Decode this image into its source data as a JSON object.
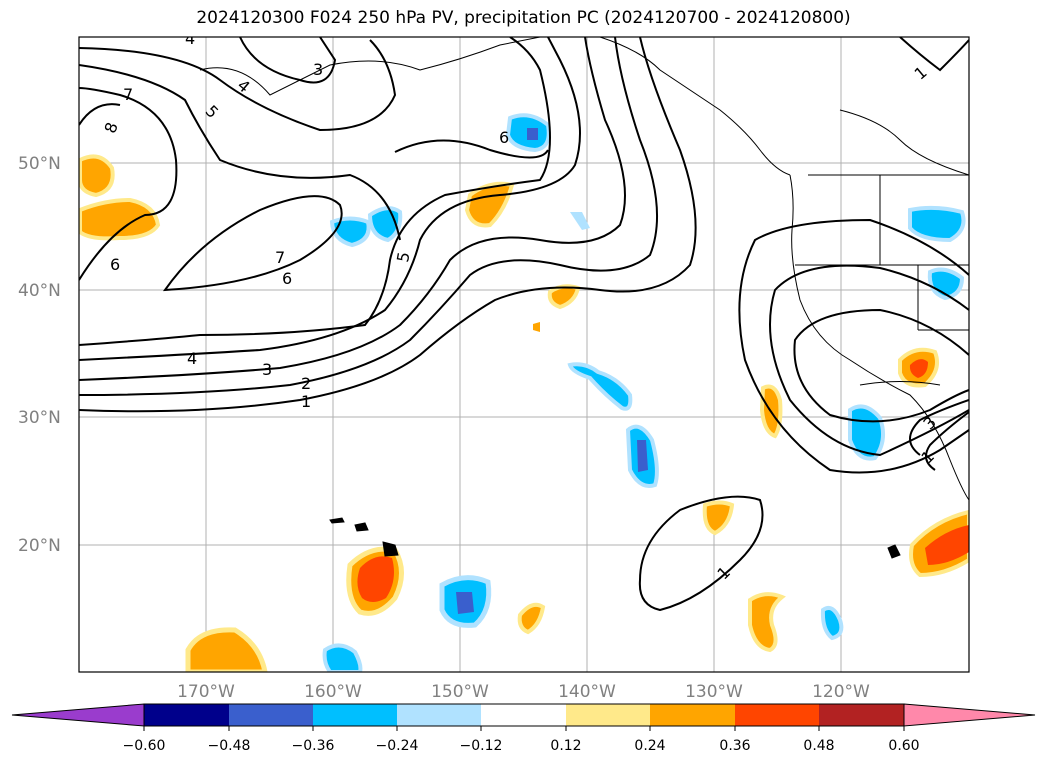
{
  "title": "2024120300 F024 250 hPa PV, precipitation PC (2024120700 - 2024120800)",
  "map": {
    "lat_labels": [
      "50°N",
      "40°N",
      "30°N",
      "20°N"
    ],
    "lon_labels": [
      "170°W",
      "160°W",
      "150°W",
      "140°W",
      "130°W",
      "120°W"
    ],
    "pv_contour_labels": [
      "4",
      "3",
      "4",
      "5",
      "7",
      "8",
      "6",
      "6",
      "7",
      "6",
      "5",
      "4",
      "3",
      "2",
      "1",
      "1",
      "3",
      "1",
      "1"
    ]
  },
  "colorbar": {
    "ticks": [
      "−0.60",
      "−0.48",
      "−0.36",
      "−0.24",
      "−0.12",
      "0.12",
      "0.24",
      "0.36",
      "0.48",
      "0.60"
    ],
    "colors": [
      "#9a3ccd",
      "#00008b",
      "#3a5fcd",
      "#00bfff",
      "#b0e2ff",
      "#ffffff",
      "#ffe98a",
      "#ffa500",
      "#ff4500",
      "#b22222",
      "#ff88aa"
    ]
  },
  "fill_colors": {
    "neg_light": "#b0e2ff",
    "neg_mid": "#00bfff",
    "neg_dark": "#3a5fcd",
    "pos_light": "#ffe98a",
    "pos_mid": "#ffa500",
    "pos_dark": "#ff4500"
  }
}
